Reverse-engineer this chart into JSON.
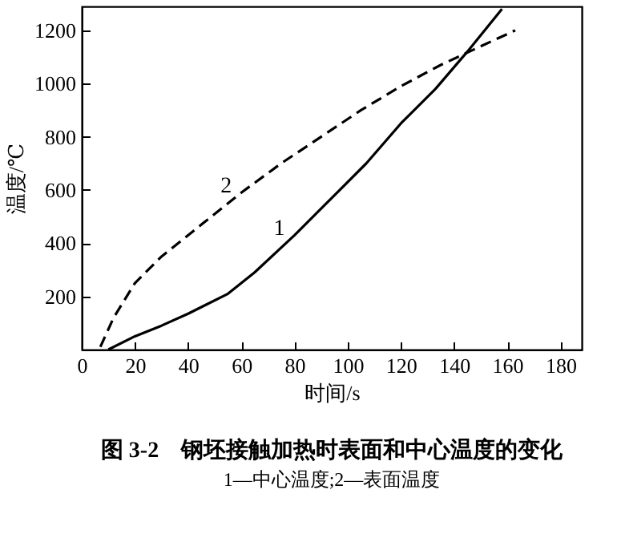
{
  "chart_data": {
    "type": "line",
    "title": "图 3-2　钢坯接触加热时表面和中心温度的变化",
    "subtitle": "1—中心温度;2—表面温度",
    "xlabel": "时间/s",
    "ylabel": "温度/℃",
    "xlim": [
      0,
      188
    ],
    "xticks": [
      0,
      20,
      40,
      60,
      80,
      100,
      120,
      140,
      160,
      180
    ],
    "ylim": [
      0,
      1290
    ],
    "yticks": [
      200,
      400,
      600,
      800,
      1000,
      1200
    ],
    "grid": false,
    "series": [
      {
        "name": "1",
        "color": "#000000",
        "line_style": "solid",
        "x": [
          10,
          20,
          30,
          40,
          55,
          65,
          80,
          95,
          107,
          120,
          133,
          145,
          158
        ],
        "values": [
          0,
          50,
          90,
          135,
          210,
          290,
          430,
          580,
          700,
          850,
          980,
          1120,
          1280
        ]
      },
      {
        "name": "2",
        "color": "#000000",
        "line_style": "dashed",
        "x": [
          7,
          12,
          20,
          30,
          45,
          60,
          75,
          90,
          105,
          120,
          135,
          150,
          163
        ],
        "values": [
          10,
          120,
          250,
          350,
          470,
          590,
          700,
          800,
          900,
          990,
          1070,
          1140,
          1200
        ]
      }
    ]
  }
}
